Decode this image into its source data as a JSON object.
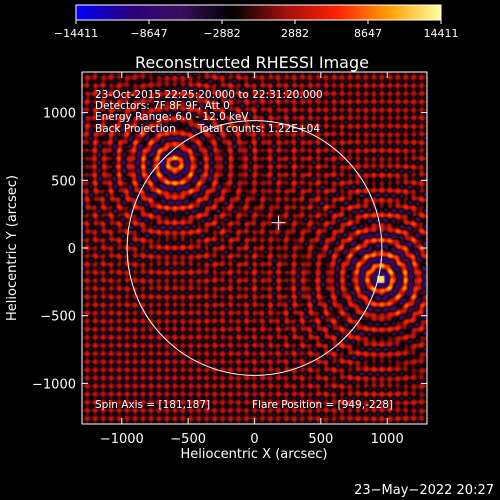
{
  "chart_data": {
    "type": "heatmap",
    "title": "Reconstructed RHESSI Image",
    "xlabel": "Heliocentric X (arcsec)",
    "ylabel": "Heliocentric Y (arcsec)",
    "xlim": [
      -1300,
      1300
    ],
    "ylim": [
      -1300,
      1300
    ],
    "x_ticks": [
      -1000,
      -500,
      0,
      500,
      1000
    ],
    "y_ticks": [
      -1000,
      -500,
      0,
      500,
      1000
    ],
    "x_tick_labels": [
      "−1000",
      "−500",
      "0",
      "500",
      "1000"
    ],
    "y_tick_labels": [
      "−1000",
      "−500",
      "0",
      "500",
      "1000"
    ],
    "colorbar": {
      "range": [
        -14411,
        14411
      ],
      "ticks": [
        -14411,
        -8647,
        -2882,
        2882,
        8647,
        14411
      ],
      "tick_labels": [
        "−14411",
        "−8647",
        "−2882",
        "2882",
        "8647",
        "14411"
      ]
    },
    "annotations": [
      "23-Oct-2015 22:25:20.000 to 22:31:20.000",
      "Detectors: 7F 8F 9F, Att 0",
      "Energy Range: 6.0 - 12.0 keV",
      "Back Projection",
      "Total counts: 1.22E+04",
      "Spin Axis = [181,187]",
      "Flare Position = [949,-228]"
    ],
    "solar_limb": {
      "center": [
        0,
        0
      ],
      "radius": 960
    },
    "spin_axis": [
      181,
      187
    ],
    "sources": [
      {
        "x": 949,
        "y": -228,
        "relative_intensity": 1.0
      },
      {
        "x": -600,
        "y": 620,
        "relative_intensity": -0.9
      }
    ],
    "timestamp": "23−May−2022 20:27",
    "colors": {
      "background": "#000000",
      "foreground": "#ffffff",
      "colormap": [
        "#0000ff",
        "#2a0080",
        "#3a1060",
        "#000000",
        "#a01010",
        "#ff2000",
        "#ffa000",
        "#ffffa0"
      ]
    }
  }
}
